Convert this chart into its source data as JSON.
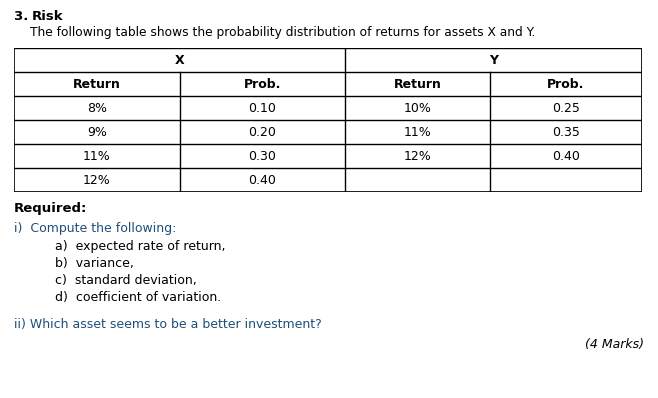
{
  "title_number": "3.",
  "title_bold": "Risk",
  "subtitle": "The following table shows the probability distribution of returns for assets X and Y.",
  "bg_color": "#ffffff",
  "text_color": "#000000",
  "table_header_x": "X",
  "table_header_y": "Y",
  "col_headers": [
    "Return",
    "Prob.",
    "Return",
    "Prob."
  ],
  "x_data": [
    [
      "8%",
      "0.10"
    ],
    [
      "9%",
      "0.20"
    ],
    [
      "11%",
      "0.30"
    ],
    [
      "12%",
      "0.40"
    ]
  ],
  "y_data": [
    [
      "10%",
      "0.25"
    ],
    [
      "11%",
      "0.35"
    ],
    [
      "12%",
      "0.40"
    ],
    [
      "",
      ""
    ]
  ],
  "required_label": "Required:",
  "i_label": "i)  Compute the following:",
  "sub_items": [
    "a)  expected rate of return,",
    "b)  variance,",
    "c)  standard deviation,",
    "d)  coefficient of variation."
  ],
  "ii_label": "ii) Which asset seems to be a better investment?",
  "marks_label": "(4 Marks)",
  "i_color": "#1f4e79",
  "ii_color": "#1f4e79"
}
